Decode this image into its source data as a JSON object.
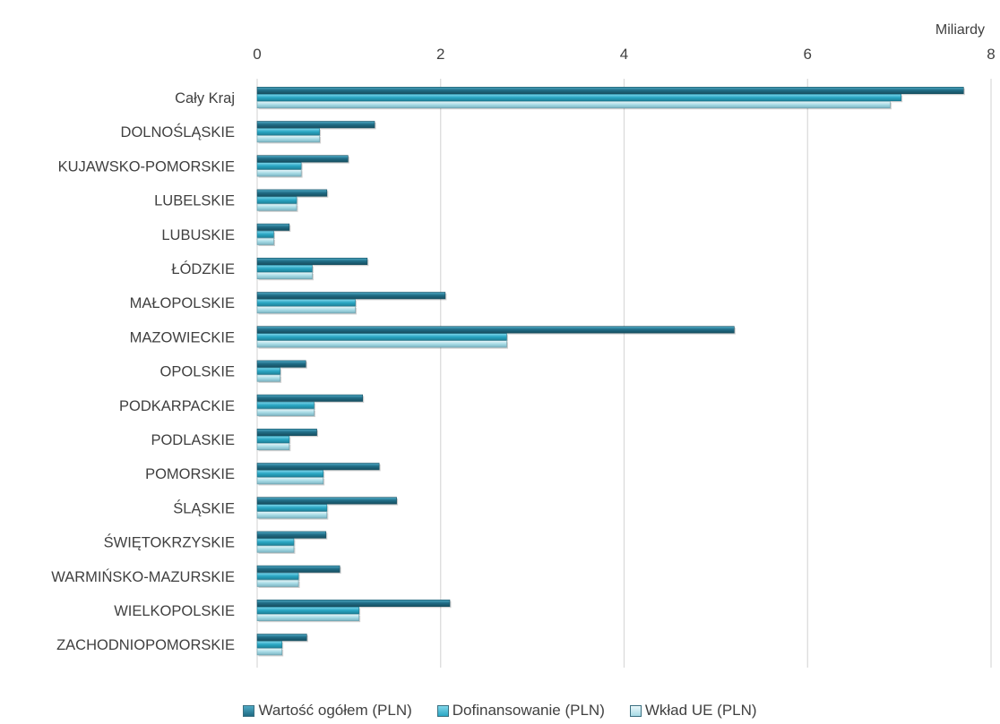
{
  "chart_data": {
    "type": "bar",
    "orientation": "horizontal",
    "unit_label": "Miliardy",
    "xlim": [
      0,
      8
    ],
    "xticks": [
      "0",
      "2",
      "4",
      "6",
      "8"
    ],
    "grid": true,
    "legend_position": "bottom",
    "categories": [
      "Cały Kraj",
      "DOLNOŚLĄSKIE",
      "KUJAWSKO-POMORSKIE",
      "LUBELSKIE",
      "LUBUSKIE",
      "ŁÓDZKIE",
      "MAŁOPOLSKIE",
      "MAZOWIECKIE",
      "OPOLSKIE",
      "PODKARPACKIE",
      "PODLASKIE",
      "POMORSKIE",
      "ŚLĄSKIE",
      "ŚWIĘTOKRZYSKIE",
      "WARMIŃSKO-MAZURSKIE",
      "WIELKOPOLSKIE",
      "ZACHODNIOPOMORSKIE"
    ],
    "series": [
      {
        "name": "Wartość ogółem (PLN)",
        "color": "#1f6b84",
        "values": [
          7.7,
          1.28,
          0.99,
          0.76,
          0.35,
          1.2,
          2.05,
          5.2,
          0.53,
          1.15,
          0.65,
          1.33,
          1.52,
          0.75,
          0.9,
          2.1,
          0.54
        ]
      },
      {
        "name": "Dofinansowanie (PLN)",
        "color": "#2aa7c4",
        "values": [
          7.02,
          0.68,
          0.48,
          0.43,
          0.18,
          0.6,
          1.07,
          2.72,
          0.25,
          0.62,
          0.35,
          0.72,
          0.76,
          0.4,
          0.45,
          1.11,
          0.27
        ]
      },
      {
        "name": "Wkład UE (PLN)",
        "color": "#a7dbe6",
        "values": [
          6.9,
          0.68,
          0.48,
          0.43,
          0.18,
          0.6,
          1.07,
          2.72,
          0.25,
          0.62,
          0.35,
          0.72,
          0.76,
          0.4,
          0.45,
          1.11,
          0.27
        ]
      }
    ]
  }
}
